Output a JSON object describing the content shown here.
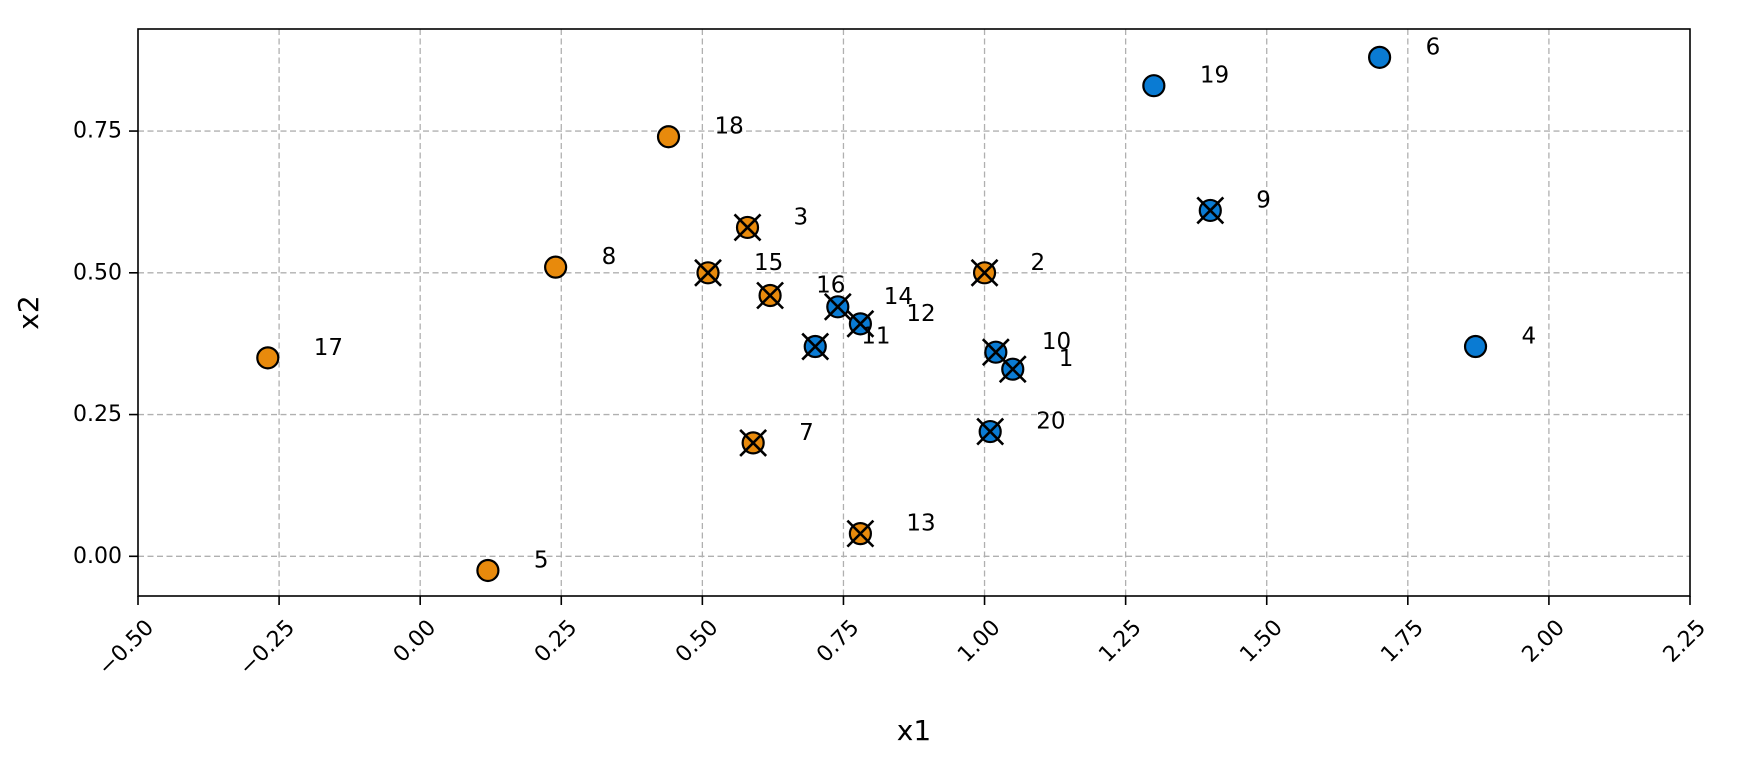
{
  "chart_data": {
    "type": "scatter",
    "title": "",
    "xlabel": "x1",
    "ylabel": "x2",
    "xlim": [
      -0.5,
      2.25
    ],
    "ylim": [
      -0.07,
      0.93
    ],
    "x_ticks": [
      -0.5,
      -0.25,
      0.0,
      0.25,
      0.5,
      0.75,
      1.0,
      1.25,
      1.5,
      1.75,
      2.0,
      2.25
    ],
    "x_tick_labels": [
      "−0.50",
      "−0.25",
      "0.00",
      "0.25",
      "0.50",
      "0.75",
      "1.00",
      "1.25",
      "1.50",
      "1.75",
      "2.00",
      "2.25"
    ],
    "y_ticks": [
      0.0,
      0.25,
      0.5,
      0.75
    ],
    "y_tick_labels": [
      "0.00",
      "0.25",
      "0.50",
      "0.75"
    ],
    "grid": true,
    "legend": "none",
    "class_colors": {
      "blue": "#0a7bd3",
      "orange": "#e88a0c"
    },
    "marked_points_overlay": "black x",
    "points": [
      {
        "label": "1",
        "x": 1.05,
        "y": 0.33,
        "class": "blue",
        "marked": true
      },
      {
        "label": "2",
        "x": 1.0,
        "y": 0.5,
        "class": "orange",
        "marked": true
      },
      {
        "label": "3",
        "x": 0.58,
        "y": 0.58,
        "class": "orange",
        "marked": true
      },
      {
        "label": "4",
        "x": 1.87,
        "y": 0.37,
        "class": "blue",
        "marked": false
      },
      {
        "label": "5",
        "x": 0.12,
        "y": -0.025,
        "class": "orange",
        "marked": false
      },
      {
        "label": "6",
        "x": 1.7,
        "y": 0.88,
        "class": "blue",
        "marked": false
      },
      {
        "label": "7",
        "x": 0.59,
        "y": 0.2,
        "class": "orange",
        "marked": true
      },
      {
        "label": "8",
        "x": 0.24,
        "y": 0.51,
        "class": "orange",
        "marked": false
      },
      {
        "label": "9",
        "x": 1.4,
        "y": 0.61,
        "class": "blue",
        "marked": true
      },
      {
        "label": "10",
        "x": 1.02,
        "y": 0.36,
        "class": "blue",
        "marked": true
      },
      {
        "label": "11",
        "x": 0.7,
        "y": 0.37,
        "class": "blue",
        "marked": true
      },
      {
        "label": "12",
        "x": 0.78,
        "y": 0.41,
        "class": "blue",
        "marked": true
      },
      {
        "label": "13",
        "x": 0.78,
        "y": 0.04,
        "class": "orange",
        "marked": true
      },
      {
        "label": "14",
        "x": 0.74,
        "y": 0.44,
        "class": "blue",
        "marked": true
      },
      {
        "label": "15",
        "x": 0.51,
        "y": 0.5,
        "class": "orange",
        "marked": true
      },
      {
        "label": "16",
        "x": 0.62,
        "y": 0.46,
        "class": "orange",
        "marked": true
      },
      {
        "label": "17",
        "x": -0.27,
        "y": 0.35,
        "class": "orange",
        "marked": false
      },
      {
        "label": "18",
        "x": 0.44,
        "y": 0.74,
        "class": "orange",
        "marked": false
      },
      {
        "label": "19",
        "x": 1.3,
        "y": 0.83,
        "class": "blue",
        "marked": false
      },
      {
        "label": "20",
        "x": 1.01,
        "y": 0.22,
        "class": "blue",
        "marked": true
      }
    ]
  }
}
